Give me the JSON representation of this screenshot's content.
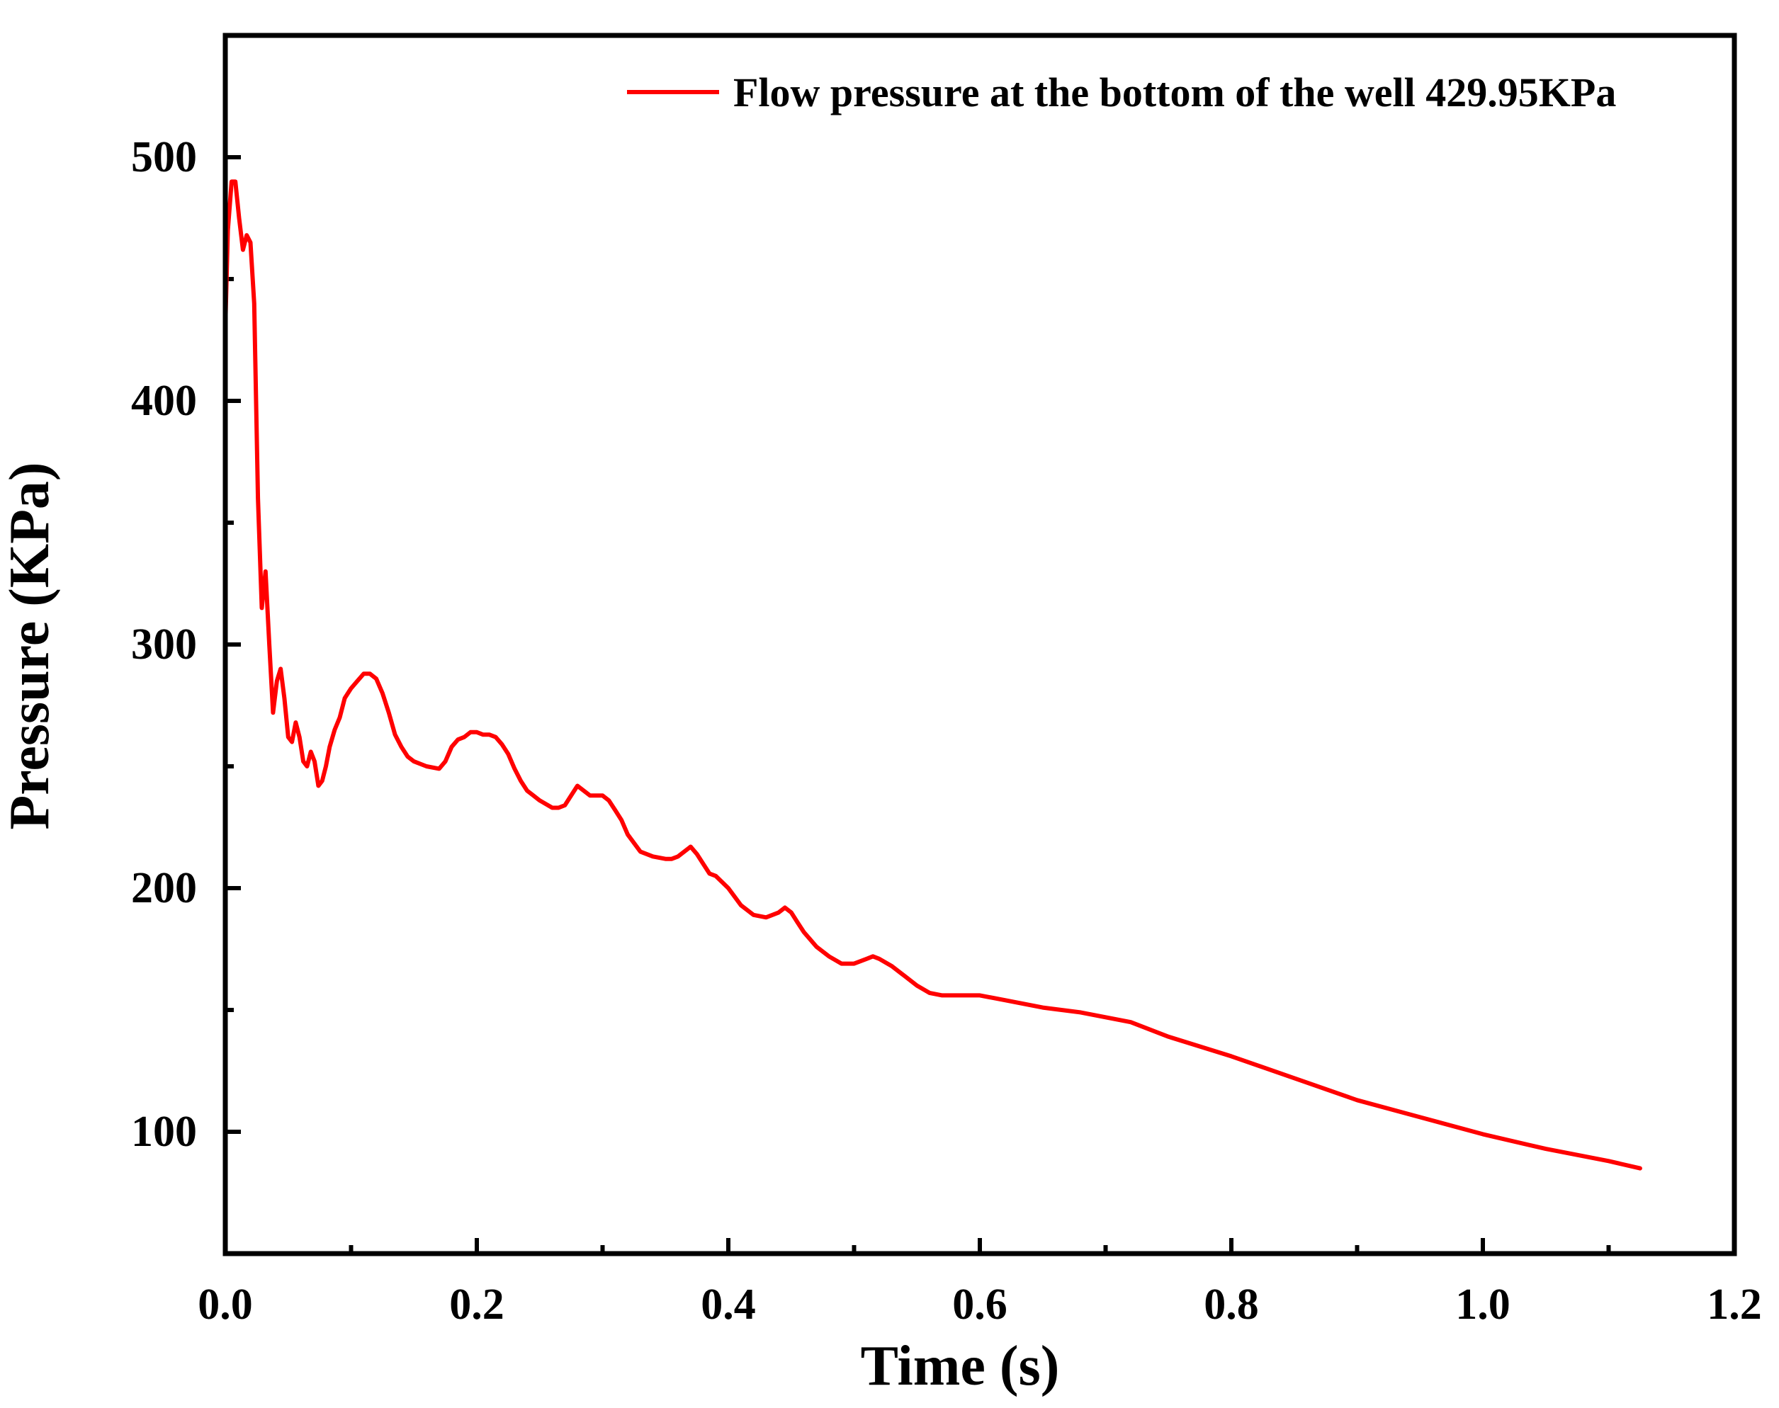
{
  "chart_data": {
    "type": "line",
    "title": "",
    "xlabel": "Time (s)",
    "ylabel": "Pressure (KPa)",
    "xlim": [
      0.0,
      1.2
    ],
    "ylim": [
      50,
      550
    ],
    "x_ticks": [
      0.0,
      0.2,
      0.4,
      0.6,
      0.8,
      1.0,
      1.2
    ],
    "x_tick_labels": [
      "0.0",
      "0.2",
      "0.4",
      "0.6",
      "0.8",
      "1.0",
      "1.2"
    ],
    "x_minor_ticks": [
      0.1,
      0.3,
      0.5,
      0.7,
      0.9,
      1.1
    ],
    "y_ticks": [
      100,
      200,
      300,
      400,
      500
    ],
    "y_tick_labels": [
      "100",
      "200",
      "300",
      "400",
      "500"
    ],
    "y_minor_ticks": [
      150,
      250,
      350,
      450
    ],
    "grid": false,
    "legend_position": "top-right",
    "series": [
      {
        "name": "Flow pressure at the bottom of the well 429.95KPa",
        "color": "#ff0000",
        "x": [
          0.0,
          0.002,
          0.005,
          0.008,
          0.011,
          0.014,
          0.017,
          0.02,
          0.023,
          0.026,
          0.029,
          0.032,
          0.035,
          0.038,
          0.041,
          0.044,
          0.047,
          0.05,
          0.053,
          0.056,
          0.059,
          0.062,
          0.065,
          0.068,
          0.071,
          0.074,
          0.077,
          0.08,
          0.083,
          0.087,
          0.091,
          0.095,
          0.1,
          0.105,
          0.11,
          0.115,
          0.12,
          0.125,
          0.13,
          0.135,
          0.14,
          0.145,
          0.15,
          0.16,
          0.17,
          0.175,
          0.18,
          0.185,
          0.19,
          0.195,
          0.2,
          0.205,
          0.21,
          0.215,
          0.22,
          0.225,
          0.23,
          0.235,
          0.24,
          0.245,
          0.25,
          0.26,
          0.265,
          0.27,
          0.275,
          0.28,
          0.285,
          0.29,
          0.295,
          0.3,
          0.305,
          0.31,
          0.315,
          0.32,
          0.33,
          0.34,
          0.35,
          0.355,
          0.36,
          0.365,
          0.37,
          0.375,
          0.38,
          0.385,
          0.39,
          0.4,
          0.41,
          0.42,
          0.43,
          0.44,
          0.445,
          0.45,
          0.455,
          0.46,
          0.47,
          0.48,
          0.49,
          0.5,
          0.51,
          0.515,
          0.52,
          0.53,
          0.54,
          0.55,
          0.56,
          0.57,
          0.58,
          0.59,
          0.6,
          0.62,
          0.65,
          0.68,
          0.7,
          0.72,
          0.75,
          0.8,
          0.85,
          0.9,
          0.95,
          1.0,
          1.05,
          1.1,
          1.125
        ],
        "values": [
          430,
          470,
          490,
          490,
          475,
          462,
          468,
          465,
          440,
          360,
          315,
          330,
          300,
          272,
          285,
          290,
          278,
          262,
          260,
          268,
          262,
          252,
          250,
          256,
          252,
          242,
          244,
          250,
          258,
          265,
          270,
          278,
          282,
          285,
          288,
          288,
          286,
          280,
          272,
          263,
          258,
          254,
          252,
          250,
          249,
          252,
          258,
          261,
          262,
          264,
          264,
          263,
          263,
          262,
          259,
          255,
          249,
          244,
          240,
          238,
          236,
          233,
          233,
          234,
          238,
          242,
          240,
          238,
          238,
          238,
          236,
          232,
          228,
          222,
          215,
          213,
          212,
          212,
          213,
          215,
          217,
          214,
          210,
          206,
          205,
          200,
          193,
          189,
          188,
          190,
          192,
          190,
          186,
          182,
          176,
          172,
          169,
          169,
          171,
          172,
          171,
          168,
          164,
          160,
          157,
          156,
          156,
          156,
          156,
          154,
          151,
          149,
          147,
          145,
          139,
          131,
          122,
          113,
          106,
          99,
          93,
          88,
          85
        ]
      }
    ]
  }
}
